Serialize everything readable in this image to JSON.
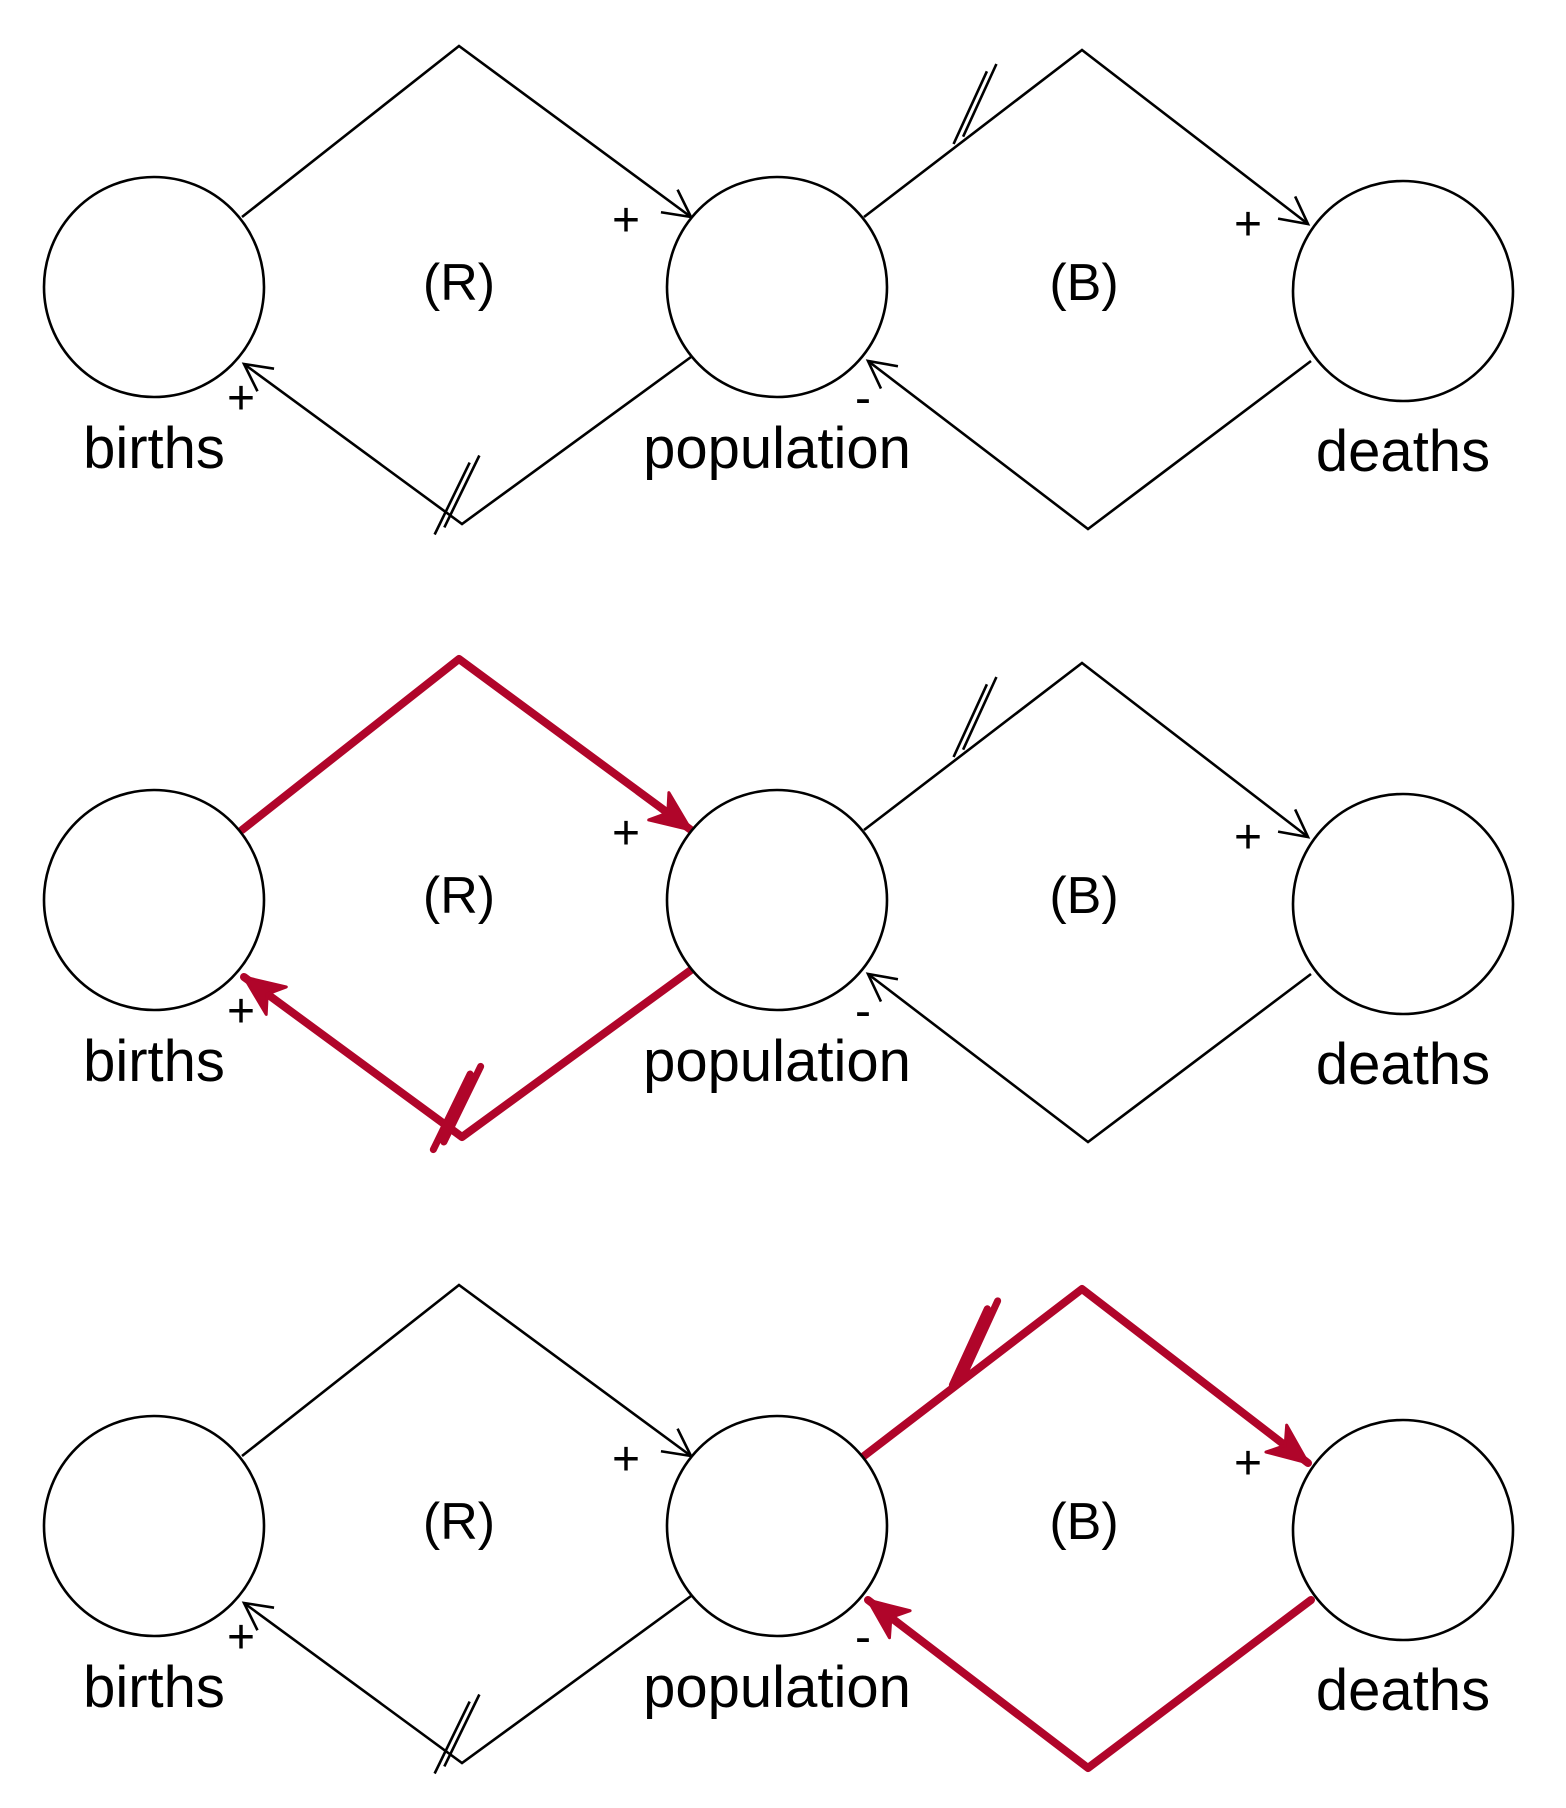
{
  "colors": {
    "line": "#000000",
    "highlight": "#b0052a",
    "background": "#ffffff"
  },
  "panels": [
    {
      "highlight": "none",
      "nodes": {
        "births": "births",
        "population": "population",
        "deaths": "deaths"
      },
      "loops": {
        "reinforcing": "(R)",
        "balancing": "(B)"
      },
      "polarities": {
        "births_to_population": "+",
        "population_to_births": "+",
        "population_to_deaths": "+",
        "deaths_to_population": "-"
      }
    },
    {
      "highlight": "reinforcing",
      "nodes": {
        "births": "births",
        "population": "population",
        "deaths": "deaths"
      },
      "loops": {
        "reinforcing": "(R)",
        "balancing": "(B)"
      },
      "polarities": {
        "births_to_population": "+",
        "population_to_births": "+",
        "population_to_deaths": "+",
        "deaths_to_population": "-"
      }
    },
    {
      "highlight": "balancing",
      "nodes": {
        "births": "births",
        "population": "population",
        "deaths": "deaths"
      },
      "loops": {
        "reinforcing": "(R)",
        "balancing": "(B)"
      },
      "polarities": {
        "births_to_population": "+",
        "population_to_births": "+",
        "population_to_deaths": "+",
        "deaths_to_population": "-"
      }
    }
  ]
}
